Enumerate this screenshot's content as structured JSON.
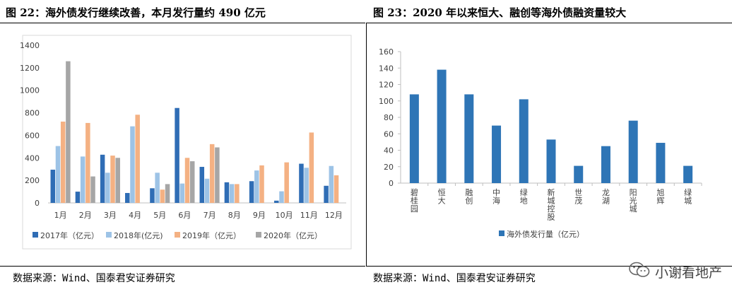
{
  "left": {
    "title": "图 22：海外债发行继续改善，本月发行量约 490 亿元",
    "source": "数据来源：Wind、国泰君安证券研究"
  },
  "right": {
    "title": "图 23：2020 年以来恒大、融创等海外债融资量较大",
    "source": "数据来源：Wind、国泰君安证券研究"
  },
  "watermark": "小谢看地产",
  "chart_data": [
    {
      "type": "bar",
      "categories": [
        "1月",
        "2月",
        "3月",
        "4月",
        "5月",
        "6月",
        "7月",
        "8月",
        "9月",
        "10月",
        "11月",
        "12月"
      ],
      "series": [
        {
          "name": "2017年（亿元）",
          "color": "#2F6DB5",
          "values": [
            295,
            100,
            428,
            88,
            130,
            843,
            320,
            183,
            193,
            20,
            348,
            152
          ]
        },
        {
          "name": "2018年(亿元)",
          "color": "#9DC3E6",
          "values": [
            505,
            412,
            268,
            680,
            268,
            172,
            215,
            167,
            288,
            103,
            312,
            328
          ]
        },
        {
          "name": "2019年（亿元）",
          "color": "#F4B183",
          "values": [
            722,
            710,
            420,
            783,
            118,
            400,
            522,
            167,
            333,
            360,
            625,
            245
          ]
        },
        {
          "name": "2020年（亿元）",
          "color": "#A6A6A6",
          "values": [
            1258,
            235,
            400,
            null,
            167,
            370,
            493,
            null,
            null,
            null,
            null,
            null
          ]
        }
      ],
      "yticks": [
        0,
        200,
        400,
        600,
        800,
        1000,
        1200,
        1400
      ],
      "ylim": [
        0,
        1400
      ],
      "grid": false,
      "legend": "bottom"
    },
    {
      "type": "bar",
      "categories": [
        "碧桂园",
        "恒大",
        "融创",
        "中海",
        "绿地",
        "新城控股",
        "世茂",
        "龙湖",
        "阳光城",
        "旭辉",
        "绿城"
      ],
      "series": [
        {
          "name": "海外债发行量（亿元）",
          "color": "#2E75B6",
          "values": [
            108,
            138,
            108,
            70,
            102,
            53,
            21,
            45,
            76,
            49,
            21
          ]
        }
      ],
      "yticks": [
        0,
        20,
        40,
        60,
        80,
        100,
        120,
        140,
        160
      ],
      "ylim": [
        0,
        160
      ],
      "grid": false,
      "legend": "bottom"
    }
  ]
}
